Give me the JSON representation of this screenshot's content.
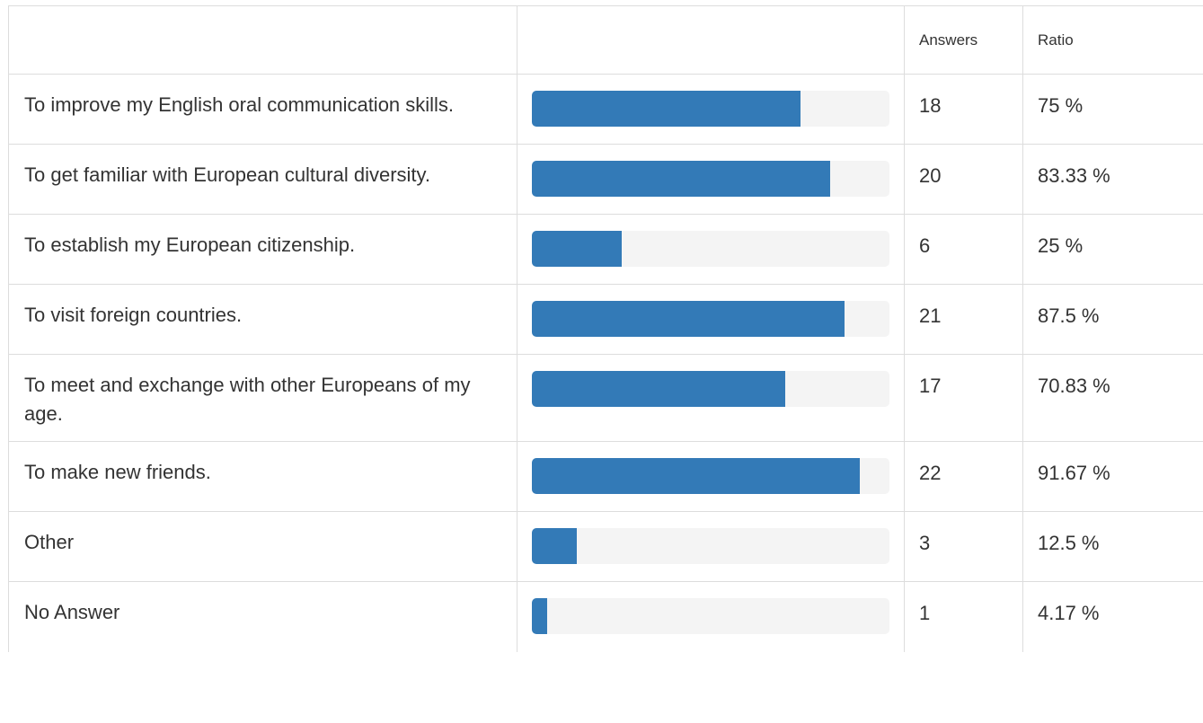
{
  "header": {
    "question_label": "",
    "bar_label": "",
    "answers_label": "Answers",
    "ratio_label": "Ratio"
  },
  "accent_color": "#337ab7",
  "rows": [
    {
      "label": "To improve my English oral communication skills.",
      "answers": "18",
      "ratio": "75 %",
      "fraction": 0.75,
      "height": 78
    },
    {
      "label": "To get familiar with European cultural diversity.",
      "answers": "20",
      "ratio": "83.33 %",
      "fraction": 0.8333,
      "height": 78
    },
    {
      "label": "To establish my European citizenship.",
      "answers": "6",
      "ratio": "25 %",
      "fraction": 0.25,
      "height": 78
    },
    {
      "label": "To visit foreign countries.",
      "answers": "21",
      "ratio": "87.5 %",
      "fraction": 0.875,
      "height": 78
    },
    {
      "label": "To meet and exchange with other Europeans of my age.",
      "answers": "17",
      "ratio": "70.83 %",
      "fraction": 0.7083,
      "height": 97
    },
    {
      "label": "To make new friends.",
      "answers": "22",
      "ratio": "91.67 %",
      "fraction": 0.9167,
      "height": 78
    },
    {
      "label": "Other",
      "answers": "3",
      "ratio": "12.5 %",
      "fraction": 0.125,
      "height": 78
    },
    {
      "label": "No Answer",
      "answers": "1",
      "ratio": "4.17 %",
      "fraction": 0.0417,
      "height": 78
    }
  ]
}
